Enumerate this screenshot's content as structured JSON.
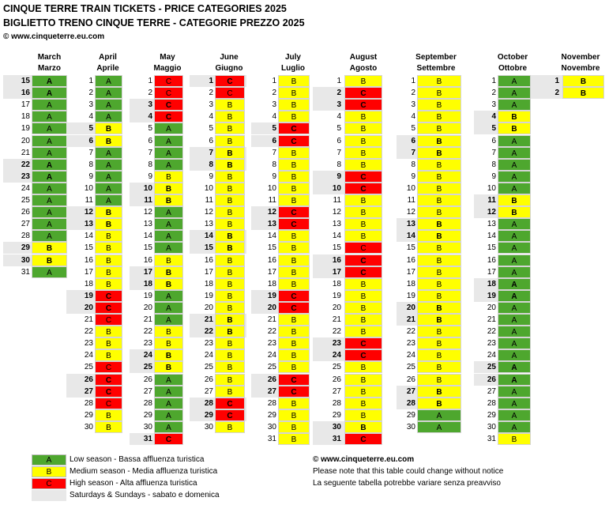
{
  "header": {
    "title_en": "CINQUE TERRE TRAIN TICKETS  -  PRICE CATEGORIES 2025",
    "title_it": "BIGLIETTO TRENO CINQUE TERRE - CATEGORIE PREZZO 2025",
    "copyright": "© www.cinqueterre.eu.com"
  },
  "colors": {
    "A": "#4ea72e",
    "B": "#ffff00",
    "C": "#ff0000",
    "weekend": "#e8e8e8"
  },
  "months": [
    {
      "en": "March",
      "it": "Marzo",
      "start": 15,
      "days": 17,
      "weekends": [
        15,
        16,
        22,
        23,
        29,
        30
      ],
      "cats": "AAAAAAAAAAAAAABBA"
    },
    {
      "en": "April",
      "it": "Aprile",
      "start": 1,
      "days": 30,
      "weekends": [
        5,
        6,
        12,
        13,
        19,
        20,
        26,
        27
      ],
      "cats": "AAAABBAAAAABBBBBBBCCCBBBCCCCBB"
    },
    {
      "en": "May",
      "it": "Maggio",
      "start": 1,
      "days": 31,
      "weekends": [
        3,
        4,
        10,
        11,
        17,
        18,
        24,
        25,
        31
      ],
      "cats": "CCCCAAAABBBAAAABBBAAABBBBAAAAAC"
    },
    {
      "en": "June",
      "it": "Giugno",
      "start": 1,
      "days": 30,
      "weekends": [
        1,
        7,
        8,
        14,
        15,
        21,
        22,
        28,
        29
      ],
      "cats": "CCBBBBBBBBBBBBBBBBBBBBBBBBBCCB"
    },
    {
      "en": "July",
      "it": "Luglio",
      "start": 1,
      "days": 31,
      "weekends": [
        5,
        6,
        12,
        13,
        19,
        20,
        26,
        27
      ],
      "cats": "BBBBCCBBBBBCCBBBBBCCBBBBBCCBBBB"
    },
    {
      "en": "August",
      "it": "Agosto",
      "start": 1,
      "days": 31,
      "weekends": [
        2,
        3,
        9,
        10,
        16,
        17,
        23,
        24,
        30,
        31
      ],
      "cats": "BCCBBBBBCCBBBBCCCBBBBBCCBBBBBBC"
    },
    {
      "en": "September",
      "it": "Settembre",
      "start": 1,
      "days": 30,
      "weekends": [
        6,
        7,
        13,
        14,
        20,
        21,
        27,
        28
      ],
      "cats": "BBBBBBBBBBBBBBBBBBBBBBBBBBBBAA"
    },
    {
      "en": "October",
      "it": "Ottobre",
      "start": 1,
      "days": 31,
      "weekends": [
        4,
        5,
        11,
        12,
        18,
        19,
        25,
        26
      ],
      "cats": "AAABBAAAAABBAAAAAAAAAAAAAAAAAAB"
    },
    {
      "en": "November",
      "it": "Novembre",
      "start": 1,
      "days": 2,
      "weekends": [
        1,
        2
      ],
      "cats": "BB"
    }
  ],
  "legend": [
    {
      "swatch": "A",
      "label": "Low season - Bassa affluenza turistica",
      "color": "#4ea72e"
    },
    {
      "swatch": "B",
      "label": "Medium season - Media affluenza turistica",
      "color": "#ffff00"
    },
    {
      "swatch": "C",
      "label": "High season - Alta affluenza turistica",
      "color": "#ff0000"
    },
    {
      "swatch": "",
      "label": "Saturdays & Sundays - sabato e domenica",
      "color": "#e8e8e8"
    }
  ],
  "notes": {
    "site": "© www.cinqueterre.eu.com",
    "line_en": "Please note that this table could change without notice",
    "line_it": "La seguente tabella potrebbe variare senza preavviso"
  }
}
